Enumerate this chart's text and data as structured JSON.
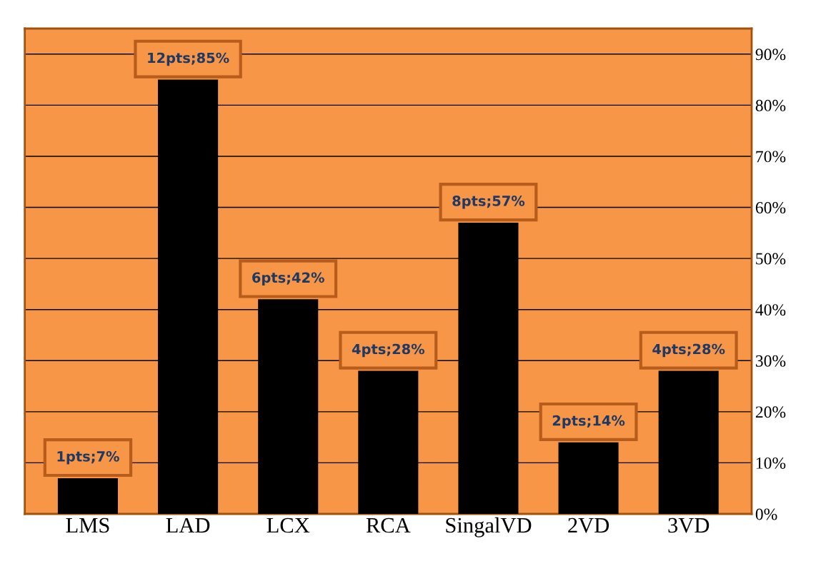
{
  "chart_data": {
    "type": "bar",
    "categories": [
      "LMS",
      "LAD",
      "LCX",
      "RCA",
      "SingalVD",
      "2VD",
      "3VD"
    ],
    "values": [
      7,
      85,
      42,
      28,
      57,
      14,
      28
    ],
    "value_labels": [
      "1pts;7%",
      "12pts;85%",
      "6pts;42%",
      "4pts;28%",
      "8pts;57%",
      "2pts;14%",
      "4pts;28%"
    ],
    "color": "#000000",
    "ylim": [
      0,
      95
    ],
    "yticks": [
      {
        "value": 0,
        "label": "0%"
      },
      {
        "value": 10,
        "label": "10%"
      },
      {
        "value": 20,
        "label": "20%"
      },
      {
        "value": 30,
        "label": "30%"
      },
      {
        "value": 40,
        "label": "40%"
      },
      {
        "value": 50,
        "label": "50%"
      },
      {
        "value": 60,
        "label": "60%"
      },
      {
        "value": 70,
        "label": "70%"
      },
      {
        "value": 80,
        "label": "80%"
      },
      {
        "value": 90,
        "label": "90%"
      }
    ],
    "grid": "y",
    "legend": false
  }
}
